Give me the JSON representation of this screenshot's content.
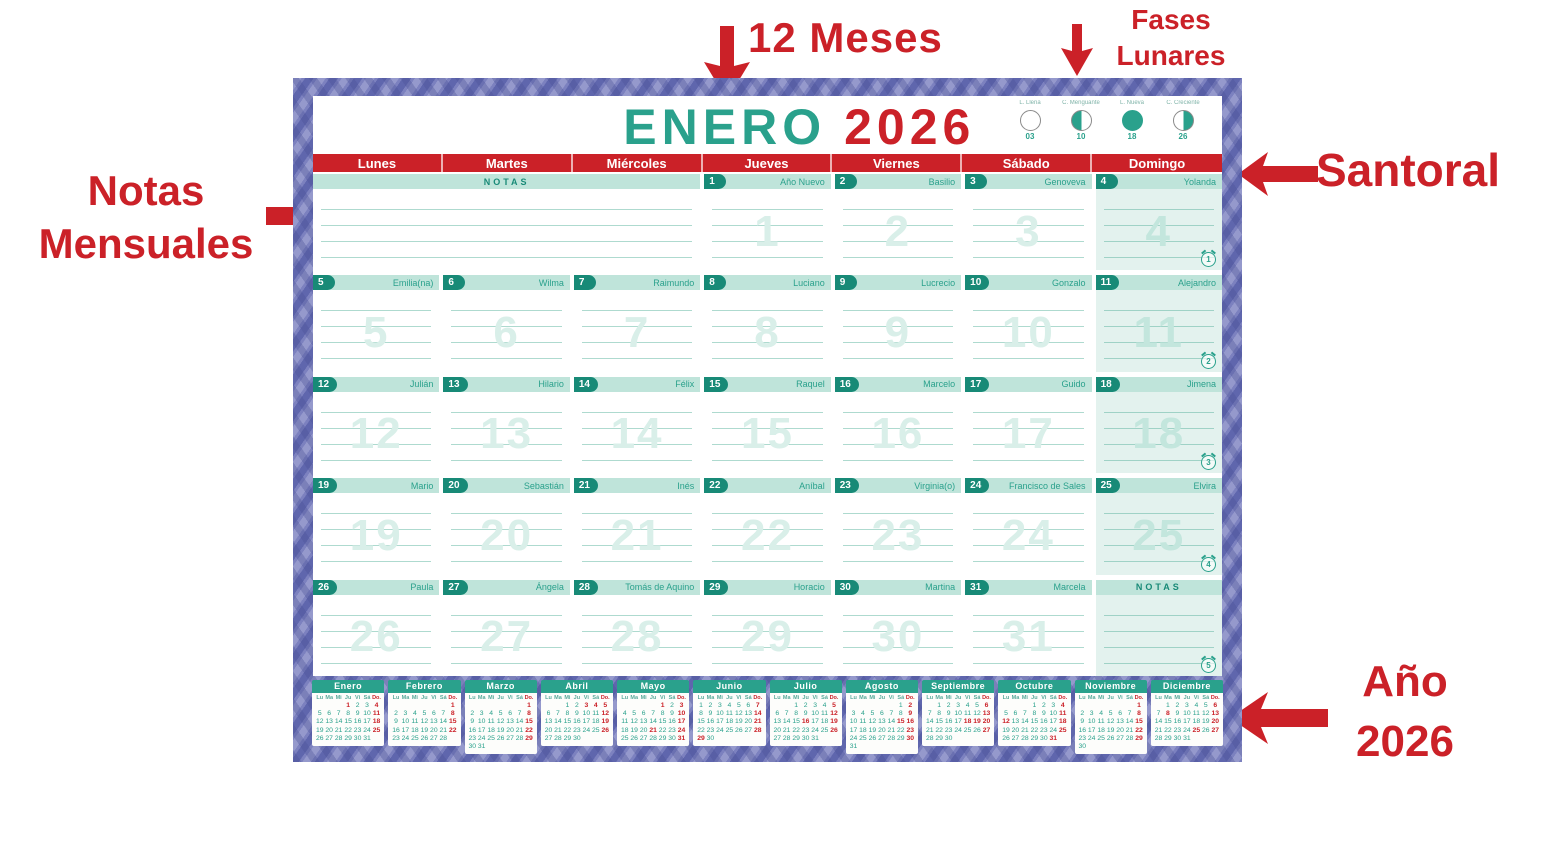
{
  "annotations": {
    "months_label": "12 Meses",
    "lunar_label_line1": "Fases",
    "lunar_label_line2": "Lunares",
    "santoral_label": "Santoral",
    "notes_label_line1": "Notas",
    "notes_label_line2": "Mensuales",
    "year_label_line1": "Año",
    "year_label_line2": "2026"
  },
  "header": {
    "month": "ENERO",
    "year": "2026",
    "moon_phases": [
      {
        "label": "L. Llena",
        "day": "03",
        "type": "full-moon"
      },
      {
        "label": "C. Menguante",
        "day": "10",
        "type": "last-quarter"
      },
      {
        "label": "L. Nueva",
        "day": "18",
        "type": "new-moon"
      },
      {
        "label": "C. Creciente",
        "day": "26",
        "type": "first-quarter"
      }
    ]
  },
  "weekdays": [
    "Lunes",
    "Martes",
    "Miércoles",
    "Jueves",
    "Viernes",
    "Sábado",
    "Domingo"
  ],
  "notas_label": "NOTAS",
  "rows": [
    {
      "cells": [
        {
          "type": "notes",
          "span": 3
        },
        {
          "type": "day",
          "day": 1,
          "saint": "Año Nuevo"
        },
        {
          "type": "day",
          "day": 2,
          "saint": "Basilio"
        },
        {
          "type": "day",
          "day": 3,
          "saint": "Genoveva"
        },
        {
          "type": "day",
          "day": 4,
          "saint": "Yolanda",
          "badge": "1"
        }
      ]
    },
    {
      "cells": [
        {
          "type": "day",
          "day": 5,
          "saint": "Emilia(na)"
        },
        {
          "type": "day",
          "day": 6,
          "saint": "Wilma"
        },
        {
          "type": "day",
          "day": 7,
          "saint": "Raimundo"
        },
        {
          "type": "day",
          "day": 8,
          "saint": "Luciano"
        },
        {
          "type": "day",
          "day": 9,
          "saint": "Lucrecio"
        },
        {
          "type": "day",
          "day": 10,
          "saint": "Gonzalo"
        },
        {
          "type": "day",
          "day": 11,
          "saint": "Alejandro",
          "badge": "2"
        }
      ]
    },
    {
      "cells": [
        {
          "type": "day",
          "day": 12,
          "saint": "Julián"
        },
        {
          "type": "day",
          "day": 13,
          "saint": "Hilario"
        },
        {
          "type": "day",
          "day": 14,
          "saint": "Félix"
        },
        {
          "type": "day",
          "day": 15,
          "saint": "Raquel"
        },
        {
          "type": "day",
          "day": 16,
          "saint": "Marcelo"
        },
        {
          "type": "day",
          "day": 17,
          "saint": "Guido"
        },
        {
          "type": "day",
          "day": 18,
          "saint": "Jimena",
          "badge": "3"
        }
      ]
    },
    {
      "cells": [
        {
          "type": "day",
          "day": 19,
          "saint": "Mario"
        },
        {
          "type": "day",
          "day": 20,
          "saint": "Sebastián"
        },
        {
          "type": "day",
          "day": 21,
          "saint": "Inés"
        },
        {
          "type": "day",
          "day": 22,
          "saint": "Aníbal"
        },
        {
          "type": "day",
          "day": 23,
          "saint": "Virginia(o)"
        },
        {
          "type": "day",
          "day": 24,
          "saint": "Francisco de Sales"
        },
        {
          "type": "day",
          "day": 25,
          "saint": "Elvira",
          "badge": "4"
        }
      ]
    },
    {
      "cells": [
        {
          "type": "day",
          "day": 26,
          "saint": "Paula"
        },
        {
          "type": "day",
          "day": 27,
          "saint": "Ángela"
        },
        {
          "type": "day",
          "day": 28,
          "saint": "Tomás de Aquino"
        },
        {
          "type": "day",
          "day": 29,
          "saint": "Horacio"
        },
        {
          "type": "day",
          "day": 30,
          "saint": "Martina"
        },
        {
          "type": "day",
          "day": 31,
          "saint": "Marcela"
        },
        {
          "type": "notes",
          "span": 1,
          "badge": "5"
        }
      ]
    }
  ],
  "mini_calendars": {
    "weekday_initials": [
      "Lu",
      "Ma",
      "Mi",
      "Ju",
      "Vi",
      "Sá",
      "Do."
    ],
    "months": [
      {
        "name": "Enero",
        "first_weekday": 3,
        "days": 31,
        "red_days": [
          1
        ]
      },
      {
        "name": "Febrero",
        "first_weekday": 6,
        "days": 28,
        "red_days": []
      },
      {
        "name": "Marzo",
        "first_weekday": 6,
        "days": 31,
        "red_days": []
      },
      {
        "name": "Abril",
        "first_weekday": 2,
        "days": 30,
        "red_days": [
          3,
          4
        ]
      },
      {
        "name": "Mayo",
        "first_weekday": 4,
        "days": 31,
        "red_days": [
          1,
          21
        ]
      },
      {
        "name": "Junio",
        "first_weekday": 0,
        "days": 30,
        "red_days": [
          29
        ]
      },
      {
        "name": "Julio",
        "first_weekday": 2,
        "days": 31,
        "red_days": [
          16
        ]
      },
      {
        "name": "Agosto",
        "first_weekday": 5,
        "days": 31,
        "red_days": [
          15
        ]
      },
      {
        "name": "Septiembre",
        "first_weekday": 1,
        "days": 30,
        "red_days": [
          18,
          19
        ]
      },
      {
        "name": "Octubre",
        "first_weekday": 3,
        "days": 31,
        "red_days": [
          12,
          31
        ]
      },
      {
        "name": "Noviembre",
        "first_weekday": 6,
        "days": 30,
        "red_days": []
      },
      {
        "name": "Diciembre",
        "first_weekday": 1,
        "days": 31,
        "red_days": [
          8,
          25
        ]
      }
    ]
  },
  "colors": {
    "red": "#cb2128",
    "teal": "#2aa18c",
    "teal_dark": "#188a77",
    "strip_bg": "#bfe4da",
    "sunday_bg": "#e3f2ee",
    "frame_base": "#7c81bf",
    "frame_dark": "#5f66ad",
    "frame_light": "#9599cc"
  }
}
